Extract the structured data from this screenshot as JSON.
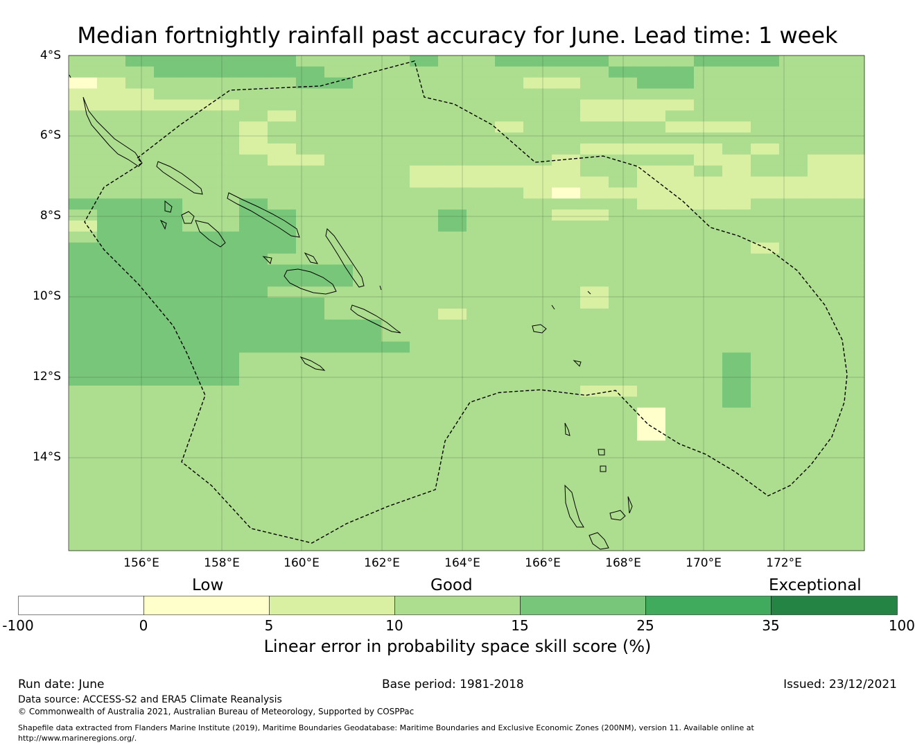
{
  "title": "Median fortnightly rainfall past accuracy for June. Lead time: 1 week",
  "map": {
    "lat_labels": [
      "4°S",
      "6°S",
      "8°S",
      "10°S",
      "12°S",
      "14°S"
    ],
    "lon_labels": [
      "156°E",
      "158°E",
      "160°E",
      "162°E",
      "164°E",
      "166°E",
      "168°E",
      "170°E",
      "172°E"
    ],
    "grid_rows": [
      "3344444433334334444333444333",
      "3334444443333333333444333333",
      "1233333344333333223344333333",
      "2223333333333333333333333333",
      "2222223333333333332222333333",
      "3333333233333333332223333333",
      "3333332333333332333332223333",
      "3333332333333333333333333333",
      "3333332233333333332222232333",
      "3333333223333333323333223322",
      "3333333333332222223322323322",
      "3333333333332222222322222222",
      "3333333333333333212222222222",
      "4444334333333333333322223333",
      "3444334433333433322333333333",
      "2444334433333433333333333333",
      "3444444433333333333333333333",
      "4444444433333333333333332333",
      "4444444333333333333333333333",
      "4444444444333333333333333333",
      "4444444444333333333333333333",
      "4444444333333333332333333333",
      "4444444443333333332333333333",
      "4444444443333233333333333333",
      "4444444444433333333333333333",
      "4444444444433333333333333333",
      "4444444444443333333333333333",
      "4444443333333333333333343333",
      "4444443333333333333333343333",
      "4444443333333333333333343333",
      "3333333333333333332233343333",
      "3333333333333333333333343333",
      "3333333333333333333313333333",
      "3333333333333333333313333333",
      "3333333333333333333313333333",
      "3333333333333333333333333333",
      "3333333333333333333333333333",
      "3333333333333333333333333333",
      "3333333333333333333333333333",
      "3333333333333333333333333333",
      "3333333333333333333333333333",
      "3333333333333333333333333333",
      "3333333333333333333333333333",
      "3333333333333333333333333333",
      "3333333333333333333333333333"
    ]
  },
  "colorbar": {
    "categories": [
      "Low",
      "Good",
      "Exceptional"
    ],
    "ticks": [
      "-100",
      "0",
      "5",
      "10",
      "15",
      "25",
      "35",
      "100"
    ],
    "colors": [
      "#ffffff",
      "#ffffcc",
      "#d9f0a3",
      "#addd8e",
      "#78c679",
      "#41ab5d",
      "#238443"
    ],
    "title": "Linear error in probability space skill score (%)"
  },
  "footer": {
    "run_date": "Run date: June",
    "base_period": "Base period: 1981-2018",
    "issued": "Issued: 23/12/2021",
    "data_source": "Data source: ACCESS-S2 and ERA5 Climate Reanalysis",
    "copyright": "© Commonwealth of Australia 2021, Australian Bureau of Meteorology, Supported by COSPPac",
    "shapefile_line1": "Shapefile data extracted from Flanders Marine Institute (2019), Maritime Boundaries Geodatabase: Maritime Boundaries and Exclusive Economic Zones (200NM), version 11. Available online at",
    "shapefile_line2": "http://www.marineregions.org/."
  }
}
